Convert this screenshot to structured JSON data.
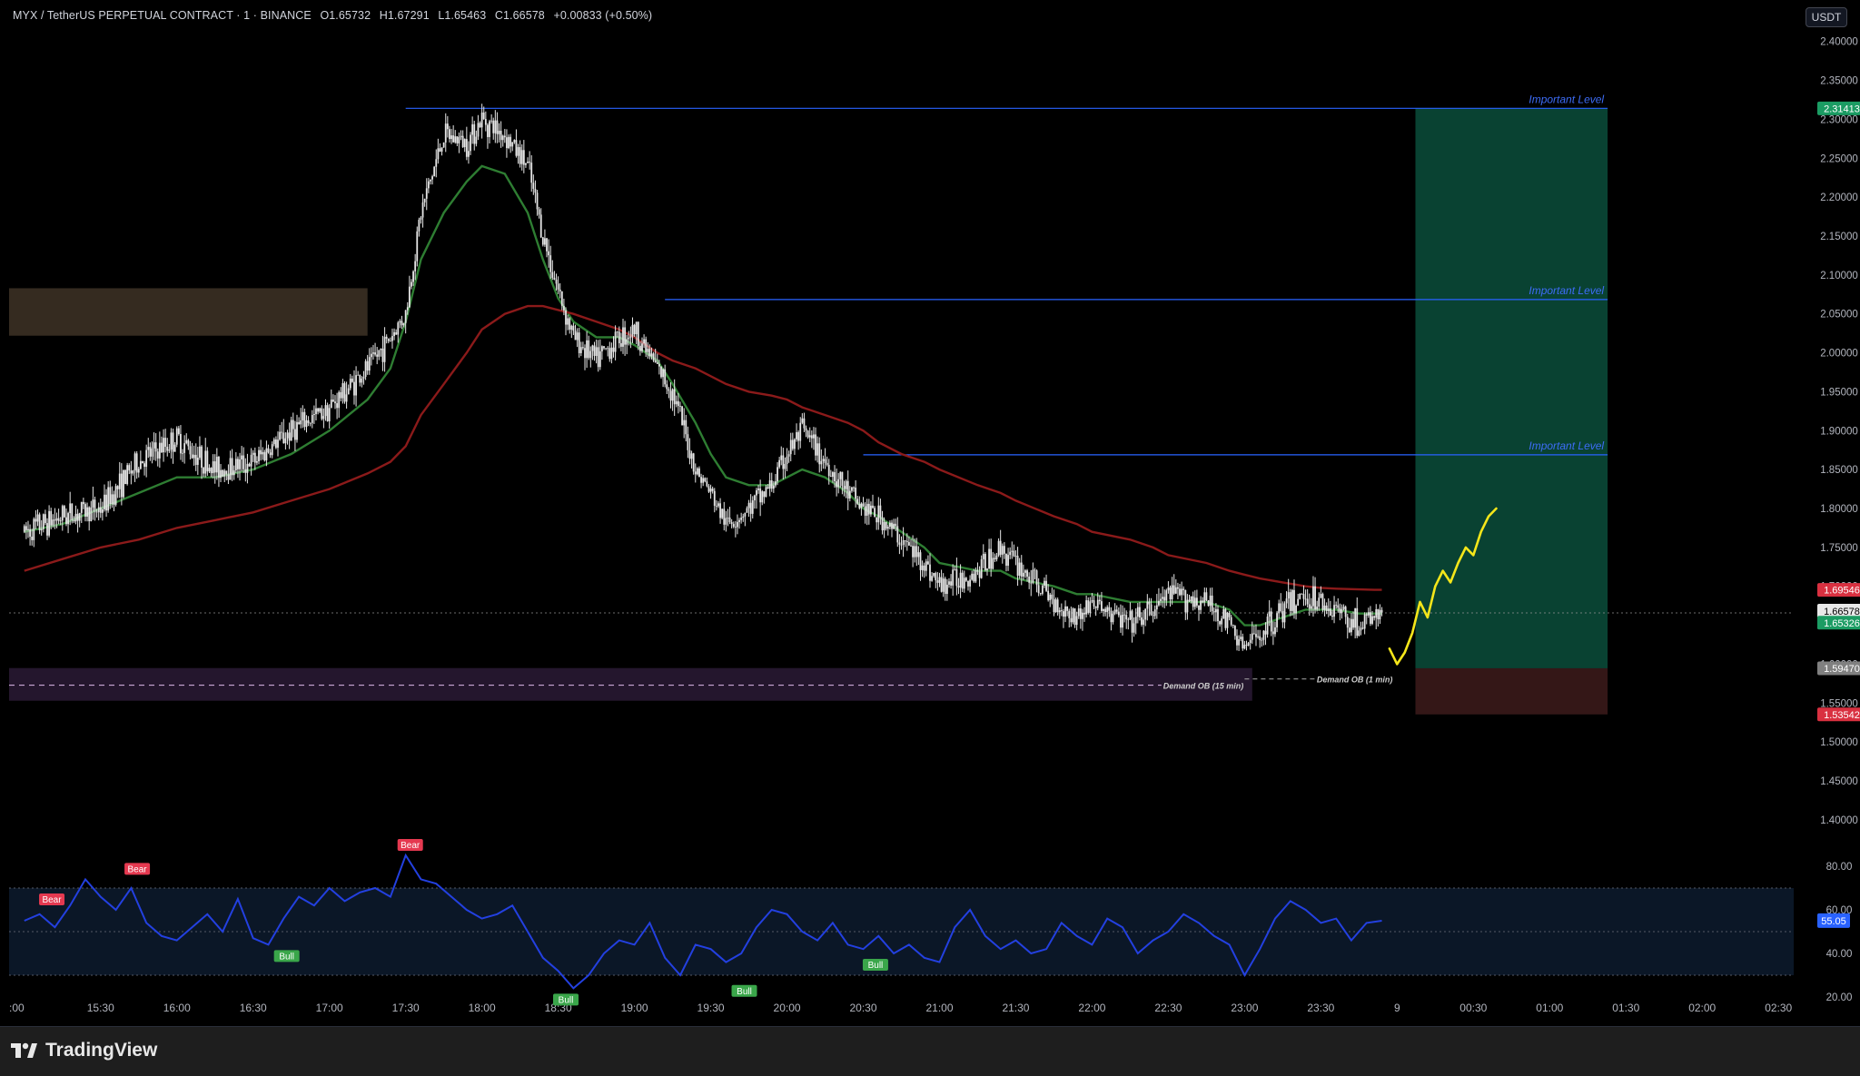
{
  "header": {
    "symbol": "MYX / TetherUS PERPETUAL CONTRACT · 1 · BINANCE",
    "open": "O1.65732",
    "high": "H1.67291",
    "low": "L1.65463",
    "close": "C1.66578",
    "change": "+0.00833 (+0.50%)"
  },
  "currency_button": "USDT",
  "branding": {
    "logo_text": "TradingView"
  },
  "colors": {
    "background": "#000000",
    "candle": "#e6e6e6",
    "ema_fast": "#2e7d32",
    "ema_slow": "#8b1a1a",
    "level_line": "#2962ff",
    "target_zone": "#0b4d3b",
    "stop_zone": "#3a1a1a",
    "supply_zone": "#3b3024",
    "demand_zone": "#2a1a35",
    "projection": "#f5e61a",
    "rsi_line": "#2340e0",
    "bear_tag": "#e53950",
    "bull_tag": "#3aa64a"
  },
  "chart_data": [
    {
      "type": "line",
      "title": "MYX / TetherUS PERPETUAL CONTRACT · 1 · BINANCE",
      "xlabel": "",
      "ylabel": "",
      "x_ticks": [
        "15:30",
        "16:00",
        "16:30",
        "17:00",
        "17:30",
        "18:00",
        "18:30",
        "19:00",
        "19:30",
        "20:00",
        "20:30",
        "21:00",
        "21:30",
        "22:00",
        "22:30",
        "23:00",
        "23:30",
        "9",
        "00:30",
        "01:00",
        "01:30",
        "02:00",
        "02:30"
      ],
      "x_partial_label": ":00",
      "y_ticks": [
        "2.40000",
        "2.35000",
        "2.30000",
        "2.25000",
        "2.20000",
        "2.15000",
        "2.10000",
        "2.05000",
        "2.00000",
        "1.95000",
        "1.90000",
        "1.85000",
        "1.80000",
        "1.75000",
        "1.70000",
        "1.65000",
        "1.60000",
        "1.55000",
        "1.50000",
        "1.45000",
        "1.40000"
      ],
      "ylim": [
        1.38,
        2.43
      ],
      "price_path_x_hours": [
        15.0,
        15.25,
        15.5,
        15.75,
        16.0,
        16.25,
        16.5,
        16.75,
        17.0,
        17.25,
        17.4,
        17.5,
        17.6,
        17.75,
        17.9,
        18.0,
        18.15,
        18.3,
        18.4,
        18.5,
        18.6,
        18.75,
        18.9,
        19.0,
        19.15,
        19.25,
        19.4,
        19.5,
        19.6,
        19.75,
        19.9,
        20.0,
        20.1,
        20.25,
        20.4,
        20.5,
        20.6,
        20.75,
        20.9,
        21.0,
        21.25,
        21.4,
        21.5,
        21.75,
        21.9,
        22.0,
        22.25,
        22.4,
        22.5,
        22.75,
        22.9,
        23.0,
        23.1,
        23.25,
        23.4,
        23.5,
        23.6,
        23.75,
        23.85,
        23.9
      ],
      "price_path_y": [
        1.77,
        1.79,
        1.8,
        1.86,
        1.89,
        1.85,
        1.86,
        1.9,
        1.93,
        1.98,
        2.02,
        2.05,
        2.18,
        2.28,
        2.27,
        2.3,
        2.28,
        2.24,
        2.15,
        2.08,
        2.02,
        1.99,
        2.02,
        2.03,
        1.98,
        1.95,
        1.85,
        1.82,
        1.78,
        1.8,
        1.83,
        1.87,
        1.9,
        1.86,
        1.82,
        1.8,
        1.79,
        1.76,
        1.73,
        1.7,
        1.72,
        1.75,
        1.73,
        1.68,
        1.66,
        1.68,
        1.65,
        1.67,
        1.69,
        1.68,
        1.65,
        1.62,
        1.64,
        1.67,
        1.69,
        1.68,
        1.67,
        1.65,
        1.66,
        1.665
      ],
      "series": [
        {
          "name": "",
          "kind": "ema_fast",
          "y": [
            1.77,
            1.78,
            1.8,
            1.82,
            1.84,
            1.84,
            1.85,
            1.87,
            1.9,
            1.94,
            1.98,
            2.04,
            2.12,
            2.18,
            2.22,
            2.24,
            2.23,
            2.18,
            2.12,
            2.07,
            2.04,
            2.02,
            2.02,
            2.01,
            1.99,
            1.96,
            1.91,
            1.87,
            1.84,
            1.83,
            1.83,
            1.84,
            1.85,
            1.84,
            1.82,
            1.8,
            1.79,
            1.77,
            1.75,
            1.73,
            1.72,
            1.72,
            1.71,
            1.7,
            1.69,
            1.69,
            1.68,
            1.68,
            1.68,
            1.68,
            1.67,
            1.65,
            1.65,
            1.66,
            1.67,
            1.67,
            1.67,
            1.665,
            1.665,
            1.665
          ]
        },
        {
          "name": "",
          "kind": "ema_slow",
          "y": [
            1.72,
            1.735,
            1.75,
            1.76,
            1.775,
            1.785,
            1.795,
            1.81,
            1.825,
            1.845,
            1.86,
            1.88,
            1.92,
            1.96,
            2.0,
            2.03,
            2.05,
            2.06,
            2.06,
            2.055,
            2.05,
            2.04,
            2.03,
            2.02,
            2.0,
            1.99,
            1.98,
            1.97,
            1.96,
            1.95,
            1.945,
            1.94,
            1.93,
            1.92,
            1.91,
            1.9,
            1.885,
            1.87,
            1.86,
            1.85,
            1.83,
            1.82,
            1.81,
            1.79,
            1.78,
            1.77,
            1.76,
            1.75,
            1.74,
            1.73,
            1.72,
            1.715,
            1.71,
            1.705,
            1.7,
            1.698,
            1.697,
            1.696,
            1.6955,
            1.6955
          ]
        }
      ],
      "levels": [
        {
          "label": "Important Level",
          "price": 2.31413,
          "from_hours": 17.5
        },
        {
          "label": "Important Level",
          "price": 2.0685,
          "from_hours": 19.2
        },
        {
          "label": "Important Level",
          "price": 1.869,
          "from_hours": 20.5
        }
      ],
      "zones": [
        {
          "label": "Demand OB (15 min)",
          "kind": "demand",
          "from_hours": 14.9,
          "to_hours": 23.05,
          "y_top": 1.595,
          "y_bottom": 1.553,
          "mid": 1.573
        },
        {
          "label": "Demand OB (1 min)",
          "kind": "demand_small",
          "from_hours": 23.0,
          "to_hours": 23.95,
          "mid": 1.581
        },
        {
          "label": "",
          "kind": "supply",
          "from_hours": 14.9,
          "to_hours": 17.25,
          "y_top": 2.083,
          "y_bottom": 2.022
        }
      ],
      "position": {
        "from_hours": 24.12,
        "to_hours": 25.38,
        "entry": 1.5947,
        "target": 2.31413,
        "stop": 1.53542
      },
      "projection_x_hours": [
        23.95,
        24.0,
        24.05,
        24.1,
        24.15,
        24.2,
        24.25,
        24.3,
        24.35,
        24.4,
        24.45,
        24.5,
        24.55,
        24.6,
        24.65
      ],
      "projection_y": [
        1.62,
        1.6,
        1.615,
        1.64,
        1.68,
        1.66,
        1.7,
        1.72,
        1.705,
        1.73,
        1.75,
        1.74,
        1.77,
        1.79,
        1.8
      ],
      "price_labels": [
        {
          "value": "2.31413",
          "price": 2.31413,
          "color": "#1b9c63"
        },
        {
          "value": "1.69546",
          "price": 1.69546,
          "color": "#d93040"
        },
        {
          "value": "1.66578",
          "price": 1.66578,
          "color": "#e8e8e8",
          "countdown": "00:20"
        },
        {
          "value": "1.65326",
          "price": 1.65326,
          "color": "#1b9c63"
        },
        {
          "value": "1.59470",
          "price": 1.5947,
          "color": "#808080"
        },
        {
          "value": "1.53542",
          "price": 1.53542,
          "color": "#d93040"
        }
      ],
      "current_price": 1.66578
    },
    {
      "type": "line",
      "title": "",
      "y_ticks": [
        "80.00",
        "60.00",
        "40.00",
        "20.00"
      ],
      "ylim": [
        15,
        90
      ],
      "band": [
        30,
        70
      ],
      "mid": 50,
      "current_value": "55.05",
      "rsi_x_hours": [
        15.0,
        15.1,
        15.2,
        15.3,
        15.4,
        15.5,
        15.6,
        15.7,
        15.8,
        15.9,
        16.0,
        16.1,
        16.2,
        16.3,
        16.4,
        16.5,
        16.6,
        16.7,
        16.8,
        16.9,
        17.0,
        17.1,
        17.2,
        17.3,
        17.4,
        17.5,
        17.6,
        17.7,
        17.8,
        17.9,
        18.0,
        18.1,
        18.2,
        18.3,
        18.4,
        18.5,
        18.6,
        18.7,
        18.8,
        18.9,
        19.0,
        19.1,
        19.2,
        19.3,
        19.4,
        19.5,
        19.6,
        19.7,
        19.8,
        19.9,
        20.0,
        20.1,
        20.2,
        20.3,
        20.4,
        20.5,
        20.6,
        20.7,
        20.8,
        20.9,
        21.0,
        21.1,
        21.2,
        21.3,
        21.4,
        21.5,
        21.6,
        21.7,
        21.8,
        21.9,
        22.0,
        22.1,
        22.2,
        22.3,
        22.4,
        22.5,
        22.6,
        22.7,
        22.8,
        22.9,
        23.0,
        23.1,
        23.2,
        23.3,
        23.4,
        23.5,
        23.6,
        23.7,
        23.8,
        23.9
      ],
      "rsi_y": [
        55,
        58,
        52,
        62,
        74,
        66,
        60,
        70,
        54,
        48,
        46,
        52,
        58,
        50,
        65,
        47,
        44,
        56,
        66,
        62,
        70,
        64,
        68,
        70,
        66,
        85,
        74,
        72,
        66,
        60,
        56,
        58,
        62,
        50,
        38,
        32,
        24,
        30,
        40,
        46,
        44,
        54,
        38,
        30,
        44,
        42,
        36,
        40,
        52,
        60,
        58,
        50,
        46,
        54,
        44,
        42,
        48,
        40,
        44,
        38,
        36,
        52,
        60,
        48,
        42,
        46,
        40,
        42,
        54,
        48,
        44,
        56,
        52,
        40,
        46,
        50,
        58,
        54,
        48,
        44,
        30,
        42,
        56,
        64,
        60,
        54,
        56,
        46,
        54,
        55
      ],
      "signals": [
        {
          "label": "Bear",
          "kind": "bear",
          "x_hours": 15.18,
          "value": 60
        },
        {
          "label": "Bear",
          "kind": "bear",
          "x_hours": 15.74,
          "value": 74
        },
        {
          "label": "Bull",
          "kind": "bull",
          "x_hours": 16.72,
          "value": 44
        },
        {
          "label": "Bear",
          "kind": "bear",
          "x_hours": 17.53,
          "value": 85
        },
        {
          "label": "Bull",
          "kind": "bull",
          "x_hours": 18.55,
          "value": 24
        },
        {
          "label": "Bull",
          "kind": "bull",
          "x_hours": 19.72,
          "value": 28
        },
        {
          "label": "Bull",
          "kind": "bull",
          "x_hours": 20.58,
          "value": 40
        }
      ]
    }
  ]
}
